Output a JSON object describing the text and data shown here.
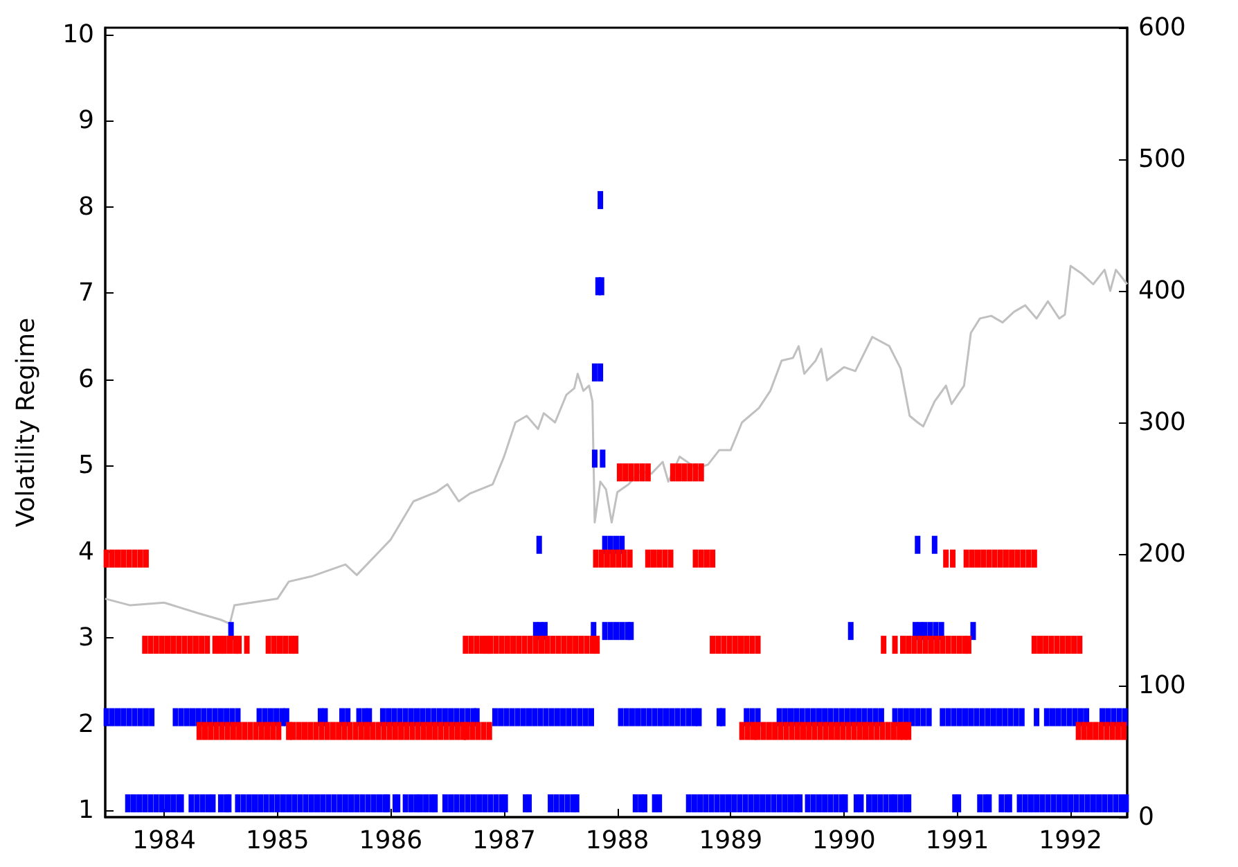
{
  "chart_data": {
    "type": "scatter",
    "ylabel": "Volatility Regime",
    "marker": "square",
    "xlim": [
      1983.48,
      1992.5
    ],
    "xticks": [
      1984,
      1985,
      1986,
      1987,
      1988,
      1989,
      1990,
      1991,
      1992
    ],
    "ylim": [
      0.92,
      10.08
    ],
    "yticks": [
      1,
      2,
      3,
      4,
      5,
      6,
      7,
      8,
      9,
      10
    ],
    "y2lim": [
      0,
      600
    ],
    "y2ticks": [
      0,
      100,
      200,
      300,
      400,
      500,
      600
    ],
    "series": [
      {
        "type": "line",
        "axis": "y2",
        "marker": "none",
        "color": "#c0c0c0",
        "x": [
          1983.48,
          1983.7,
          1984.0,
          1984.3,
          1984.5,
          1984.58,
          1984.62,
          1985.0,
          1985.1,
          1985.3,
          1985.5,
          1985.6,
          1985.7,
          1985.9,
          1986.0,
          1986.2,
          1986.4,
          1986.5,
          1986.6,
          1986.7,
          1986.9,
          1987.0,
          1987.1,
          1987.2,
          1987.3,
          1987.35,
          1987.45,
          1987.55,
          1987.62,
          1987.65,
          1987.7,
          1987.75,
          1987.78,
          1987.8,
          1987.85,
          1987.9,
          1987.95,
          1988.0,
          1988.1,
          1988.2,
          1988.3,
          1988.4,
          1988.45,
          1988.55,
          1988.7,
          1988.8,
          1988.9,
          1989.0,
          1989.1,
          1989.25,
          1989.35,
          1989.45,
          1989.55,
          1989.6,
          1989.65,
          1989.75,
          1989.8,
          1989.85,
          1990.0,
          1990.1,
          1990.25,
          1990.4,
          1990.5,
          1990.58,
          1990.65,
          1990.7,
          1990.8,
          1990.9,
          1990.95,
          1991.06,
          1991.12,
          1991.2,
          1991.3,
          1991.4,
          1991.5,
          1991.6,
          1991.7,
          1991.8,
          1991.9,
          1991.95,
          1992.0,
          1992.1,
          1992.2,
          1992.3,
          1992.35,
          1992.4,
          1992.5
        ],
        "values": [
          166,
          161,
          163,
          155,
          150,
          147,
          161,
          166,
          179,
          183,
          189,
          192,
          184,
          202,
          211,
          240,
          247,
          253,
          240,
          246,
          253,
          274,
          300,
          305,
          295,
          307,
          300,
          321,
          326,
          337,
          324,
          328,
          316,
          224,
          255,
          249,
          224,
          247,
          253,
          263,
          261,
          270,
          255,
          274,
          265,
          268,
          279,
          279,
          300,
          311,
          324,
          347,
          349,
          358,
          337,
          347,
          356,
          332,
          342,
          339,
          365,
          358,
          341,
          305,
          300,
          297,
          316,
          328,
          314,
          328,
          368,
          379,
          381,
          376,
          384,
          389,
          379,
          392,
          379,
          382,
          419,
          413,
          405,
          416,
          400,
          416,
          405
        ]
      },
      {
        "color": "#0000ff",
        "x": [
          1983.68,
          1983.73,
          1983.78,
          1983.83,
          1983.88,
          1983.93,
          1983.98,
          1984.03,
          1984.08,
          1984.13,
          1984.15,
          1984.24,
          1984.29,
          1984.34,
          1984.39,
          1984.43,
          1984.5,
          1984.55,
          1984.57,
          1984.65,
          1984.7,
          1984.75,
          1984.8,
          1984.85,
          1984.9,
          1984.95,
          1985.0,
          1985.05,
          1985.1,
          1985.15,
          1985.2,
          1985.25,
          1985.3,
          1985.35,
          1985.4,
          1985.45,
          1985.5,
          1985.55,
          1985.6,
          1985.65,
          1985.7,
          1985.75,
          1985.8,
          1985.85,
          1985.9,
          1985.95,
          1985.97,
          1986.04,
          1986.06,
          1986.13,
          1986.18,
          1986.23,
          1986.26,
          1986.31,
          1986.36,
          1986.39,
          1986.48,
          1986.53,
          1986.58,
          1986.63,
          1986.68,
          1986.73,
          1986.78,
          1986.83,
          1986.88,
          1986.93,
          1986.98,
          1987.01,
          1987.19,
          1987.22,
          1987.41,
          1987.46,
          1987.51,
          1987.56,
          1987.61,
          1987.64,
          1988.16,
          1988.21,
          1988.24,
          1988.33,
          1988.37,
          1988.63,
          1988.68,
          1988.73,
          1988.78,
          1988.83,
          1988.88,
          1988.93,
          1988.98,
          1989.03,
          1989.08,
          1989.13,
          1989.18,
          1989.23,
          1989.28,
          1989.33,
          1989.38,
          1989.43,
          1989.48,
          1989.53,
          1989.58,
          1989.61,
          1989.68,
          1989.73,
          1989.78,
          1989.83,
          1989.88,
          1989.93,
          1989.98,
          1990.01,
          1990.11,
          1990.15,
          1990.22,
          1990.27,
          1990.32,
          1990.37,
          1990.42,
          1990.45,
          1990.5,
          1990.55,
          1990.57,
          1990.98,
          1991.01,
          1991.2,
          1991.25,
          1991.28,
          1991.39,
          1991.44,
          1991.46,
          1991.55,
          1991.6,
          1991.65,
          1991.7,
          1991.75,
          1991.8,
          1991.85,
          1991.9,
          1991.95,
          1992.0,
          1992.05,
          1992.1,
          1992.15,
          1992.2,
          1992.25,
          1992.3,
          1992.35,
          1992.4,
          1992.45,
          1992.49
        ],
        "values": [
          1.08,
          1.08,
          1.08,
          1.08,
          1.08,
          1.08,
          1.08,
          1.08,
          1.08,
          1.08,
          1.08,
          1.08,
          1.08,
          1.08,
          1.08,
          1.08,
          1.08,
          1.08,
          1.08,
          1.08,
          1.08,
          1.08,
          1.08,
          1.08,
          1.08,
          1.08,
          1.08,
          1.08,
          1.08,
          1.08,
          1.08,
          1.08,
          1.08,
          1.08,
          1.08,
          1.08,
          1.08,
          1.08,
          1.08,
          1.08,
          1.08,
          1.08,
          1.08,
          1.08,
          1.08,
          1.08,
          1.08,
          1.08,
          1.08,
          1.08,
          1.08,
          1.08,
          1.08,
          1.08,
          1.08,
          1.08,
          1.08,
          1.08,
          1.08,
          1.08,
          1.08,
          1.08,
          1.08,
          1.08,
          1.08,
          1.08,
          1.08,
          1.08,
          1.08,
          1.08,
          1.08,
          1.08,
          1.08,
          1.08,
          1.08,
          1.08,
          1.08,
          1.08,
          1.08,
          1.08,
          1.08,
          1.08,
          1.08,
          1.08,
          1.08,
          1.08,
          1.08,
          1.08,
          1.08,
          1.08,
          1.08,
          1.08,
          1.08,
          1.08,
          1.08,
          1.08,
          1.08,
          1.08,
          1.08,
          1.08,
          1.08,
          1.08,
          1.08,
          1.08,
          1.08,
          1.08,
          1.08,
          1.08,
          1.08,
          1.08,
          1.08,
          1.08,
          1.08,
          1.08,
          1.08,
          1.08,
          1.08,
          1.08,
          1.08,
          1.08,
          1.08,
          1.08,
          1.08,
          1.08,
          1.08,
          1.08,
          1.08,
          1.08,
          1.08,
          1.08,
          1.08,
          1.08,
          1.08,
          1.08,
          1.08,
          1.08,
          1.08,
          1.08,
          1.08,
          1.08,
          1.08,
          1.08,
          1.08,
          1.08,
          1.08,
          1.08,
          1.08,
          1.08,
          1.08
        ]
      },
      {
        "color": "#0000ff",
        "x": [
          1983.49,
          1983.54,
          1983.59,
          1983.64,
          1983.69,
          1983.74,
          1983.79,
          1983.84,
          1983.89,
          1984.1,
          1984.15,
          1984.2,
          1984.25,
          1984.3,
          1984.35,
          1984.4,
          1984.45,
          1984.5,
          1984.55,
          1984.6,
          1984.65,
          1984.84,
          1984.89,
          1984.94,
          1984.99,
          1985.04,
          1985.08,
          1985.38,
          1985.42,
          1985.57,
          1985.62,
          1985.72,
          1985.77,
          1985.81,
          1985.93,
          1985.98,
          1986.03,
          1986.08,
          1986.13,
          1986.18,
          1986.23,
          1986.28,
          1986.33,
          1986.38,
          1986.43,
          1986.48,
          1986.53,
          1986.58,
          1986.63,
          1986.68,
          1986.73,
          1986.76,
          1986.92,
          1986.97,
          1987.02,
          1987.07,
          1987.12,
          1987.17,
          1987.22,
          1987.27,
          1987.32,
          1987.37,
          1987.42,
          1987.47,
          1987.52,
          1987.57,
          1987.62,
          1987.67,
          1987.72,
          1987.77,
          1988.03,
          1988.08,
          1988.13,
          1988.18,
          1988.23,
          1988.28,
          1988.33,
          1988.38,
          1988.43,
          1988.48,
          1988.53,
          1988.58,
          1988.63,
          1988.68,
          1988.72,
          1988.9,
          1988.93,
          1989.14,
          1989.19,
          1989.24,
          1989.43,
          1989.48,
          1989.53,
          1989.58,
          1989.63,
          1989.68,
          1989.73,
          1989.78,
          1989.83,
          1989.88,
          1989.93,
          1989.98,
          1990.03,
          1990.08,
          1990.13,
          1990.18,
          1990.23,
          1990.28,
          1990.33,
          1990.45,
          1990.5,
          1990.55,
          1990.6,
          1990.65,
          1990.7,
          1990.75,
          1990.87,
          1990.92,
          1990.97,
          1991.02,
          1991.07,
          1991.12,
          1991.17,
          1991.22,
          1991.27,
          1991.32,
          1991.37,
          1991.42,
          1991.47,
          1991.52,
          1991.57,
          1991.7,
          1991.79,
          1991.84,
          1991.89,
          1991.94,
          1991.99,
          1992.04,
          1992.09,
          1992.14,
          1992.28,
          1992.33,
          1992.38,
          1992.43,
          1992.48
        ],
        "values": [
          2.08,
          2.08,
          2.08,
          2.08,
          2.08,
          2.08,
          2.08,
          2.08,
          2.08,
          2.08,
          2.08,
          2.08,
          2.08,
          2.08,
          2.08,
          2.08,
          2.08,
          2.08,
          2.08,
          2.08,
          2.08,
          2.08,
          2.08,
          2.08,
          2.08,
          2.08,
          2.08,
          2.08,
          2.08,
          2.08,
          2.08,
          2.08,
          2.08,
          2.08,
          2.08,
          2.08,
          2.08,
          2.08,
          2.08,
          2.08,
          2.08,
          2.08,
          2.08,
          2.08,
          2.08,
          2.08,
          2.08,
          2.08,
          2.08,
          2.08,
          2.08,
          2.08,
          2.08,
          2.08,
          2.08,
          2.08,
          2.08,
          2.08,
          2.08,
          2.08,
          2.08,
          2.08,
          2.08,
          2.08,
          2.08,
          2.08,
          2.08,
          2.08,
          2.08,
          2.08,
          2.08,
          2.08,
          2.08,
          2.08,
          2.08,
          2.08,
          2.08,
          2.08,
          2.08,
          2.08,
          2.08,
          2.08,
          2.08,
          2.08,
          2.08,
          2.08,
          2.08,
          2.08,
          2.08,
          2.08,
          2.08,
          2.08,
          2.08,
          2.08,
          2.08,
          2.08,
          2.08,
          2.08,
          2.08,
          2.08,
          2.08,
          2.08,
          2.08,
          2.08,
          2.08,
          2.08,
          2.08,
          2.08,
          2.08,
          2.08,
          2.08,
          2.08,
          2.08,
          2.08,
          2.08,
          2.08,
          2.08,
          2.08,
          2.08,
          2.08,
          2.08,
          2.08,
          2.08,
          2.08,
          2.08,
          2.08,
          2.08,
          2.08,
          2.08,
          2.08,
          2.08,
          2.08,
          2.08,
          2.08,
          2.08,
          2.08,
          2.08,
          2.08,
          2.08,
          2.08,
          2.08,
          2.08,
          2.08,
          2.08,
          2.08
        ]
      },
      {
        "color": "#ff0000",
        "x": [
          1984.31,
          1984.36,
          1984.41,
          1984.46,
          1984.51,
          1984.56,
          1984.61,
          1984.66,
          1984.71,
          1984.76,
          1984.81,
          1984.86,
          1984.91,
          1984.96,
          1985.01,
          1985.1,
          1985.14,
          1985.19,
          1985.24,
          1985.29,
          1985.34,
          1985.39,
          1985.44,
          1985.49,
          1985.54,
          1985.59,
          1985.64,
          1985.69,
          1985.74,
          1985.79,
          1985.84,
          1985.89,
          1985.94,
          1985.99,
          1986.04,
          1986.09,
          1986.14,
          1986.19,
          1986.24,
          1986.29,
          1986.34,
          1986.39,
          1986.44,
          1986.49,
          1986.54,
          1986.59,
          1986.64,
          1986.67,
          1986.72,
          1986.77,
          1986.82,
          1986.87,
          1989.1,
          1989.15,
          1989.2,
          1989.24,
          1989.29,
          1989.34,
          1989.39,
          1989.44,
          1989.49,
          1989.54,
          1989.59,
          1989.64,
          1989.69,
          1989.74,
          1989.79,
          1989.84,
          1989.89,
          1989.94,
          1989.99,
          1990.04,
          1990.09,
          1990.14,
          1990.19,
          1990.24,
          1990.29,
          1990.34,
          1990.39,
          1990.44,
          1990.49,
          1990.53,
          1990.57,
          1992.07,
          1992.12,
          1992.17,
          1992.22,
          1992.27,
          1992.32,
          1992.37,
          1992.42,
          1992.47
        ],
        "values": [
          1.92,
          1.92,
          1.92,
          1.92,
          1.92,
          1.92,
          1.92,
          1.92,
          1.92,
          1.92,
          1.92,
          1.92,
          1.92,
          1.92,
          1.92,
          1.92,
          1.92,
          1.92,
          1.92,
          1.92,
          1.92,
          1.92,
          1.92,
          1.92,
          1.92,
          1.92,
          1.92,
          1.92,
          1.92,
          1.92,
          1.92,
          1.92,
          1.92,
          1.92,
          1.92,
          1.92,
          1.92,
          1.92,
          1.92,
          1.92,
          1.92,
          1.92,
          1.92,
          1.92,
          1.92,
          1.92,
          1.92,
          1.92,
          1.92,
          1.92,
          1.92,
          1.92,
          1.92,
          1.92,
          1.92,
          1.92,
          1.92,
          1.92,
          1.92,
          1.92,
          1.92,
          1.92,
          1.92,
          1.92,
          1.92,
          1.92,
          1.92,
          1.92,
          1.92,
          1.92,
          1.92,
          1.92,
          1.92,
          1.92,
          1.92,
          1.92,
          1.92,
          1.92,
          1.92,
          1.92,
          1.92,
          1.92,
          1.92,
          1.92,
          1.92,
          1.92,
          1.92,
          1.92,
          1.92,
          1.92,
          1.92,
          1.92
        ]
      },
      {
        "color": "#0000ff",
        "x": [
          1984.59,
          1987.28,
          1987.32,
          1987.36,
          1987.79,
          1987.89,
          1987.94,
          1987.99,
          1988.04,
          1988.09,
          1988.12,
          1990.06,
          1990.63,
          1990.67,
          1990.71,
          1990.76,
          1990.81,
          1990.86,
          1991.14
        ],
        "values": [
          3.08,
          3.08,
          3.08,
          3.08,
          3.08,
          3.08,
          3.08,
          3.08,
          3.08,
          3.08,
          3.08,
          3.08,
          3.08,
          3.08,
          3.08,
          3.08,
          3.08,
          3.08,
          3.08
        ]
      },
      {
        "color": "#ff0000",
        "x": [
          1983.83,
          1983.88,
          1983.93,
          1983.98,
          1984.03,
          1984.08,
          1984.13,
          1984.18,
          1984.23,
          1984.28,
          1984.33,
          1984.38,
          1984.45,
          1984.49,
          1984.53,
          1984.58,
          1984.63,
          1984.66,
          1984.73,
          1984.92,
          1984.97,
          1985.02,
          1985.07,
          1985.12,
          1985.16,
          1986.66,
          1986.71,
          1986.76,
          1986.81,
          1986.85,
          1986.88,
          1986.93,
          1986.98,
          1987.03,
          1987.08,
          1987.13,
          1987.18,
          1987.23,
          1987.28,
          1987.33,
          1987.38,
          1987.43,
          1987.48,
          1987.53,
          1987.58,
          1987.63,
          1987.68,
          1987.73,
          1987.78,
          1987.82,
          1988.84,
          1988.89,
          1988.94,
          1988.99,
          1989.04,
          1989.09,
          1989.14,
          1989.19,
          1989.24,
          1990.35,
          1990.45,
          1990.52,
          1990.57,
          1990.62,
          1990.67,
          1990.72,
          1990.77,
          1990.82,
          1990.87,
          1990.92,
          1990.97,
          1991.02,
          1991.07,
          1991.1,
          1991.68,
          1991.73,
          1991.78,
          1991.83,
          1991.88,
          1991.93,
          1991.98,
          1992.03,
          1992.08
        ],
        "values": [
          2.92,
          2.92,
          2.92,
          2.92,
          2.92,
          2.92,
          2.92,
          2.92,
          2.92,
          2.92,
          2.92,
          2.92,
          2.92,
          2.92,
          2.92,
          2.92,
          2.92,
          2.92,
          2.92,
          2.92,
          2.92,
          2.92,
          2.92,
          2.92,
          2.92,
          2.92,
          2.92,
          2.92,
          2.92,
          2.92,
          2.92,
          2.92,
          2.92,
          2.92,
          2.92,
          2.92,
          2.92,
          2.92,
          2.92,
          2.92,
          2.92,
          2.92,
          2.92,
          2.92,
          2.92,
          2.92,
          2.92,
          2.92,
          2.92,
          2.92,
          2.92,
          2.92,
          2.92,
          2.92,
          2.92,
          2.92,
          2.92,
          2.92,
          2.92,
          2.92,
          2.92,
          2.92,
          2.92,
          2.92,
          2.92,
          2.92,
          2.92,
          2.92,
          2.92,
          2.92,
          2.92,
          2.92,
          2.92,
          2.92,
          2.92,
          2.92,
          2.92,
          2.92,
          2.92,
          2.92,
          2.92,
          2.92,
          2.92
        ]
      },
      {
        "color": "#0000ff",
        "x": [
          1987.31,
          1987.89,
          1987.94,
          1987.99,
          1988.04,
          1990.65,
          1990.8
        ],
        "values": [
          4.08,
          4.08,
          4.08,
          4.08,
          4.08,
          4.08,
          4.08
        ]
      },
      {
        "color": "#ff0000",
        "x": [
          1983.49,
          1983.54,
          1983.59,
          1983.64,
          1983.69,
          1983.74,
          1983.79,
          1983.84,
          1987.81,
          1987.86,
          1987.91,
          1987.96,
          1988.01,
          1988.06,
          1988.11,
          1988.27,
          1988.32,
          1988.37,
          1988.42,
          1988.47,
          1988.69,
          1988.74,
          1988.79,
          1988.84,
          1990.9,
          1990.96,
          1991.08,
          1991.13,
          1991.18,
          1991.23,
          1991.28,
          1991.33,
          1991.38,
          1991.43,
          1991.48,
          1991.53,
          1991.58,
          1991.63,
          1991.68
        ],
        "values": [
          3.92,
          3.92,
          3.92,
          3.92,
          3.92,
          3.92,
          3.92,
          3.92,
          3.92,
          3.92,
          3.92,
          3.92,
          3.92,
          3.92,
          3.92,
          3.92,
          3.92,
          3.92,
          3.92,
          3.92,
          3.92,
          3.92,
          3.92,
          3.92,
          3.92,
          3.92,
          3.92,
          3.92,
          3.92,
          3.92,
          3.92,
          3.92,
          3.92,
          3.92,
          3.92,
          3.92,
          3.92,
          3.92,
          3.92
        ]
      },
      {
        "color": "#ff0000",
        "x": [
          1988.02,
          1988.07,
          1988.12,
          1988.17,
          1988.22,
          1988.27,
          1988.49,
          1988.54,
          1988.59,
          1988.64,
          1988.69,
          1988.74
        ],
        "values": [
          4.92,
          4.92,
          4.92,
          4.92,
          4.92,
          4.92,
          4.92,
          4.92,
          4.92,
          4.92,
          4.92,
          4.92
        ]
      },
      {
        "color": "#0000ff",
        "x": [
          1987.8,
          1987.87
        ],
        "values": [
          5.08,
          5.08
        ]
      },
      {
        "color": "#0000ff",
        "x": [
          1987.8,
          1987.85
        ],
        "values": [
          6.08,
          6.08
        ]
      },
      {
        "color": "#0000ff",
        "x": [
          1987.83,
          1987.86
        ],
        "values": [
          7.08,
          7.08
        ]
      },
      {
        "color": "#0000ff",
        "x": [
          1987.85
        ],
        "values": [
          8.08
        ]
      }
    ]
  }
}
